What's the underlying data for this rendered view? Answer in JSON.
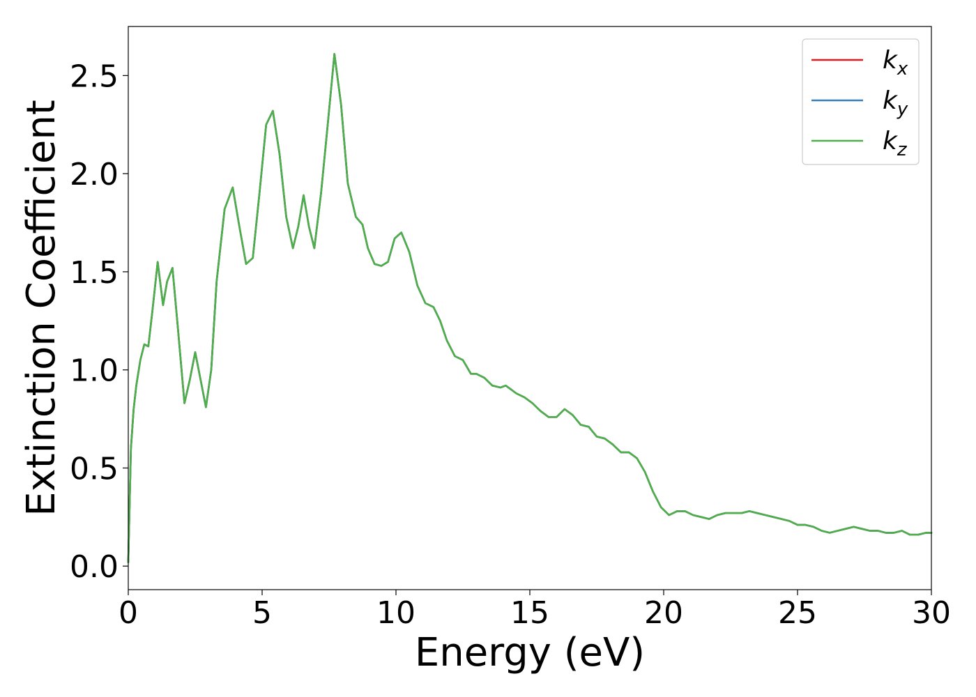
{
  "chart_data": {
    "type": "line",
    "title": "",
    "xlabel": "Energy (eV)",
    "ylabel": "Extinction Coefficient",
    "xlim": [
      0,
      30
    ],
    "ylim": [
      -0.12,
      2.75
    ],
    "xticks": [
      0,
      5,
      10,
      15,
      20,
      25,
      30
    ],
    "yticks": [
      0.0,
      0.5,
      1.0,
      1.5,
      2.0,
      2.5
    ],
    "grid": false,
    "legend_position": "top-right",
    "series": [
      {
        "name": "k_x",
        "legend_base": "k",
        "legend_sub": "x",
        "color": "#e41a1c",
        "x": [
          0,
          0.1,
          0.2,
          0.3,
          0.45,
          0.6,
          0.75,
          0.9,
          1.1,
          1.3,
          1.45,
          1.65,
          1.85,
          2.1,
          2.3,
          2.5,
          2.7,
          2.9,
          3.1,
          3.3,
          3.6,
          3.9,
          4.15,
          4.4,
          4.65,
          4.9,
          5.15,
          5.4,
          5.65,
          5.9,
          6.15,
          6.35,
          6.55,
          6.75,
          6.95,
          7.2,
          7.45,
          7.7,
          7.95,
          8.2,
          8.5,
          8.75,
          8.95,
          9.2,
          9.45,
          9.7,
          9.95,
          10.2,
          10.5,
          10.8,
          11.1,
          11.4,
          11.65,
          11.9,
          12.2,
          12.5,
          12.8,
          13.0,
          13.3,
          13.6,
          13.9,
          14.1,
          14.3,
          14.5,
          14.8,
          15.1,
          15.4,
          15.7,
          16.0,
          16.3,
          16.6,
          16.9,
          17.2,
          17.5,
          17.8,
          18.1,
          18.4,
          18.7,
          19.0,
          19.3,
          19.6,
          19.9,
          20.2,
          20.5,
          20.8,
          21.1,
          21.4,
          21.7,
          22.0,
          22.3,
          22.6,
          22.9,
          23.2,
          23.5,
          23.8,
          24.1,
          24.4,
          24.7,
          25.0,
          25.3,
          25.6,
          25.9,
          26.2,
          26.5,
          26.8,
          27.1,
          27.4,
          27.7,
          28.0,
          28.3,
          28.6,
          28.9,
          29.2,
          29.5,
          29.8,
          30
        ],
        "y": [
          0.02,
          0.6,
          0.8,
          0.92,
          1.05,
          1.13,
          1.12,
          1.3,
          1.55,
          1.33,
          1.45,
          1.52,
          1.22,
          0.83,
          0.95,
          1.09,
          0.95,
          0.81,
          1.0,
          1.45,
          1.82,
          1.93,
          1.73,
          1.54,
          1.57,
          1.9,
          2.25,
          2.32,
          2.1,
          1.78,
          1.62,
          1.73,
          1.89,
          1.73,
          1.62,
          1.9,
          2.25,
          2.61,
          2.35,
          1.95,
          1.78,
          1.74,
          1.62,
          1.54,
          1.53,
          1.55,
          1.67,
          1.7,
          1.6,
          1.43,
          1.34,
          1.32,
          1.25,
          1.15,
          1.07,
          1.05,
          0.98,
          0.98,
          0.96,
          0.92,
          0.91,
          0.92,
          0.9,
          0.88,
          0.86,
          0.83,
          0.79,
          0.76,
          0.76,
          0.8,
          0.77,
          0.72,
          0.71,
          0.66,
          0.65,
          0.62,
          0.58,
          0.58,
          0.55,
          0.48,
          0.38,
          0.3,
          0.26,
          0.28,
          0.28,
          0.26,
          0.25,
          0.24,
          0.26,
          0.27,
          0.27,
          0.27,
          0.28,
          0.27,
          0.26,
          0.25,
          0.24,
          0.23,
          0.21,
          0.21,
          0.2,
          0.18,
          0.17,
          0.18,
          0.19,
          0.2,
          0.19,
          0.18,
          0.18,
          0.17,
          0.17,
          0.18,
          0.16,
          0.16,
          0.17,
          0.17
        ]
      },
      {
        "name": "k_y",
        "legend_base": "k",
        "legend_sub": "y",
        "color": "#377eb8",
        "x": [
          0,
          0.1,
          0.2,
          0.3,
          0.45,
          0.6,
          0.75,
          0.9,
          1.1,
          1.3,
          1.45,
          1.65,
          1.85,
          2.1,
          2.3,
          2.5,
          2.7,
          2.9,
          3.1,
          3.3,
          3.6,
          3.9,
          4.15,
          4.4,
          4.65,
          4.9,
          5.15,
          5.4,
          5.65,
          5.9,
          6.15,
          6.35,
          6.55,
          6.75,
          6.95,
          7.2,
          7.45,
          7.7,
          7.95,
          8.2,
          8.5,
          8.75,
          8.95,
          9.2,
          9.45,
          9.7,
          9.95,
          10.2,
          10.5,
          10.8,
          11.1,
          11.4,
          11.65,
          11.9,
          12.2,
          12.5,
          12.8,
          13.0,
          13.3,
          13.6,
          13.9,
          14.1,
          14.3,
          14.5,
          14.8,
          15.1,
          15.4,
          15.7,
          16.0,
          16.3,
          16.6,
          16.9,
          17.2,
          17.5,
          17.8,
          18.1,
          18.4,
          18.7,
          19.0,
          19.3,
          19.6,
          19.9,
          20.2,
          20.5,
          20.8,
          21.1,
          21.4,
          21.7,
          22.0,
          22.3,
          22.6,
          22.9,
          23.2,
          23.5,
          23.8,
          24.1,
          24.4,
          24.7,
          25.0,
          25.3,
          25.6,
          25.9,
          26.2,
          26.5,
          26.8,
          27.1,
          27.4,
          27.7,
          28.0,
          28.3,
          28.6,
          28.9,
          29.2,
          29.5,
          29.8,
          30
        ],
        "y": [
          0.02,
          0.6,
          0.8,
          0.92,
          1.05,
          1.13,
          1.12,
          1.3,
          1.55,
          1.33,
          1.45,
          1.52,
          1.22,
          0.83,
          0.95,
          1.09,
          0.95,
          0.81,
          1.0,
          1.45,
          1.82,
          1.93,
          1.73,
          1.54,
          1.57,
          1.9,
          2.25,
          2.32,
          2.1,
          1.78,
          1.62,
          1.73,
          1.89,
          1.73,
          1.62,
          1.9,
          2.25,
          2.61,
          2.35,
          1.95,
          1.78,
          1.74,
          1.62,
          1.54,
          1.53,
          1.55,
          1.67,
          1.7,
          1.6,
          1.43,
          1.34,
          1.32,
          1.25,
          1.15,
          1.07,
          1.05,
          0.98,
          0.98,
          0.96,
          0.92,
          0.91,
          0.92,
          0.9,
          0.88,
          0.86,
          0.83,
          0.79,
          0.76,
          0.76,
          0.8,
          0.77,
          0.72,
          0.71,
          0.66,
          0.65,
          0.62,
          0.58,
          0.58,
          0.55,
          0.48,
          0.38,
          0.3,
          0.26,
          0.28,
          0.28,
          0.26,
          0.25,
          0.24,
          0.26,
          0.27,
          0.27,
          0.27,
          0.28,
          0.27,
          0.26,
          0.25,
          0.24,
          0.23,
          0.21,
          0.21,
          0.2,
          0.18,
          0.17,
          0.18,
          0.19,
          0.2,
          0.19,
          0.18,
          0.18,
          0.17,
          0.17,
          0.18,
          0.16,
          0.16,
          0.17,
          0.17
        ]
      },
      {
        "name": "k_z",
        "legend_base": "k",
        "legend_sub": "z",
        "color": "#4daf4a",
        "x": [
          0,
          0.1,
          0.2,
          0.3,
          0.45,
          0.6,
          0.75,
          0.9,
          1.1,
          1.3,
          1.45,
          1.65,
          1.85,
          2.1,
          2.3,
          2.5,
          2.7,
          2.9,
          3.1,
          3.3,
          3.6,
          3.9,
          4.15,
          4.4,
          4.65,
          4.9,
          5.15,
          5.4,
          5.65,
          5.9,
          6.15,
          6.35,
          6.55,
          6.75,
          6.95,
          7.2,
          7.45,
          7.7,
          7.95,
          8.2,
          8.5,
          8.75,
          8.95,
          9.2,
          9.45,
          9.7,
          9.95,
          10.2,
          10.5,
          10.8,
          11.1,
          11.4,
          11.65,
          11.9,
          12.2,
          12.5,
          12.8,
          13.0,
          13.3,
          13.6,
          13.9,
          14.1,
          14.3,
          14.5,
          14.8,
          15.1,
          15.4,
          15.7,
          16.0,
          16.3,
          16.6,
          16.9,
          17.2,
          17.5,
          17.8,
          18.1,
          18.4,
          18.7,
          19.0,
          19.3,
          19.6,
          19.9,
          20.2,
          20.5,
          20.8,
          21.1,
          21.4,
          21.7,
          22.0,
          22.3,
          22.6,
          22.9,
          23.2,
          23.5,
          23.8,
          24.1,
          24.4,
          24.7,
          25.0,
          25.3,
          25.6,
          25.9,
          26.2,
          26.5,
          26.8,
          27.1,
          27.4,
          27.7,
          28.0,
          28.3,
          28.6,
          28.9,
          29.2,
          29.5,
          29.8,
          30
        ],
        "y": [
          0.02,
          0.6,
          0.8,
          0.92,
          1.05,
          1.13,
          1.12,
          1.3,
          1.55,
          1.33,
          1.45,
          1.52,
          1.22,
          0.83,
          0.95,
          1.09,
          0.95,
          0.81,
          1.0,
          1.45,
          1.82,
          1.93,
          1.73,
          1.54,
          1.57,
          1.9,
          2.25,
          2.32,
          2.1,
          1.78,
          1.62,
          1.73,
          1.89,
          1.73,
          1.62,
          1.9,
          2.25,
          2.61,
          2.35,
          1.95,
          1.78,
          1.74,
          1.62,
          1.54,
          1.53,
          1.55,
          1.67,
          1.7,
          1.6,
          1.43,
          1.34,
          1.32,
          1.25,
          1.15,
          1.07,
          1.05,
          0.98,
          0.98,
          0.96,
          0.92,
          0.91,
          0.92,
          0.9,
          0.88,
          0.86,
          0.83,
          0.79,
          0.76,
          0.76,
          0.8,
          0.77,
          0.72,
          0.71,
          0.66,
          0.65,
          0.62,
          0.58,
          0.58,
          0.55,
          0.48,
          0.38,
          0.3,
          0.26,
          0.28,
          0.28,
          0.26,
          0.25,
          0.24,
          0.26,
          0.27,
          0.27,
          0.27,
          0.28,
          0.27,
          0.26,
          0.25,
          0.24,
          0.23,
          0.21,
          0.21,
          0.2,
          0.18,
          0.17,
          0.18,
          0.19,
          0.2,
          0.19,
          0.18,
          0.18,
          0.17,
          0.17,
          0.18,
          0.16,
          0.16,
          0.17,
          0.17
        ]
      }
    ]
  }
}
